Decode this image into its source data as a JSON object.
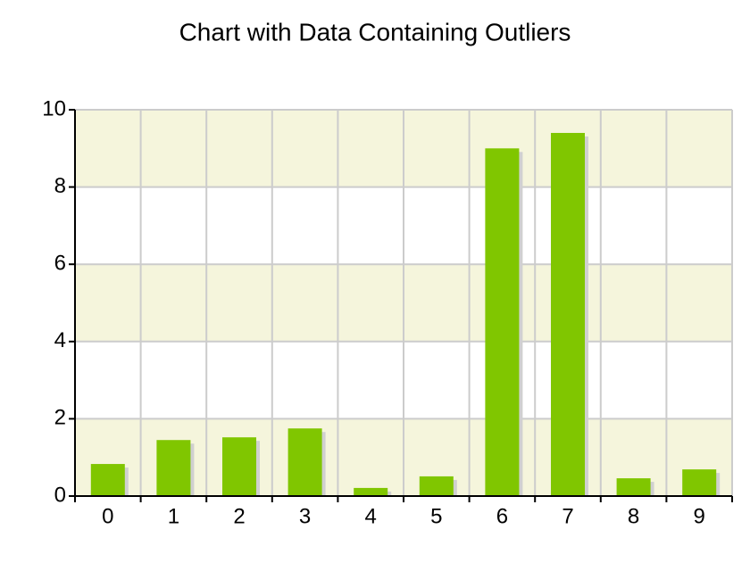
{
  "chart_data": {
    "type": "bar",
    "title": "Chart with Data Containing Outliers",
    "categories": [
      "0",
      "1",
      "2",
      "3",
      "4",
      "5",
      "6",
      "7",
      "8",
      "9"
    ],
    "values": [
      0.83,
      1.45,
      1.52,
      1.75,
      0.21,
      0.51,
      9.0,
      9.4,
      0.46,
      0.69
    ],
    "color": "#80c600",
    "band_color": "#f5f5dc",
    "ylim": [
      0,
      10
    ],
    "yticks": [
      0,
      2,
      4,
      6,
      8,
      10
    ],
    "grid": true
  }
}
